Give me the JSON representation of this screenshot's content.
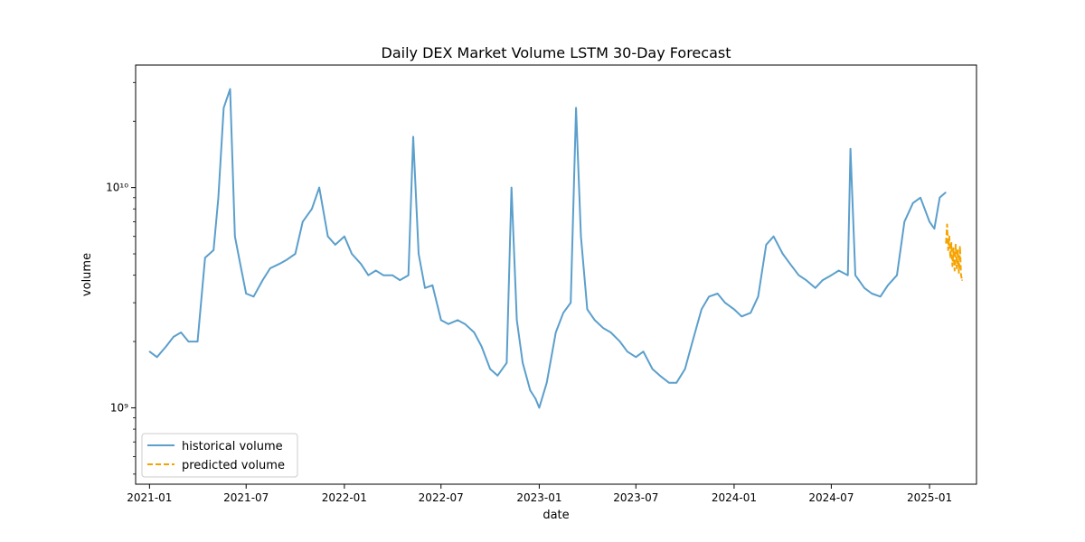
{
  "chart_data": {
    "type": "line",
    "title": "Daily DEX Market Volume LSTM 30-Day Forecast",
    "xlabel": "date",
    "ylabel": "volume",
    "yscale": "log",
    "ylim": [
      450000000,
      36000000000
    ],
    "xlim": [
      "2020-12-06",
      "2025-03-30"
    ],
    "x_ticks": [
      "2021-01",
      "2021-07",
      "2022-01",
      "2022-07",
      "2023-01",
      "2023-07",
      "2024-01",
      "2024-07",
      "2025-01"
    ],
    "y_ticks": [
      {
        "value": 1000000000,
        "label": "10⁹"
      },
      {
        "value": 10000000000,
        "label": "10¹⁰"
      }
    ],
    "legend": {
      "position": "lower-left"
    },
    "grid": false,
    "series": [
      {
        "name": "historical volume",
        "color": "#5b9fcc",
        "style": "solid",
        "points": [
          [
            "2021-01-01",
            1800000000
          ],
          [
            "2021-01-15",
            1700000000
          ],
          [
            "2021-02-01",
            1900000000
          ],
          [
            "2021-02-15",
            2100000000
          ],
          [
            "2021-03-01",
            2200000000
          ],
          [
            "2021-03-15",
            2000000000
          ],
          [
            "2021-04-01",
            2000000000
          ],
          [
            "2021-04-15",
            4800000000
          ],
          [
            "2021-05-01",
            5200000000
          ],
          [
            "2021-05-10",
            9000000000
          ],
          [
            "2021-05-20",
            23000000000
          ],
          [
            "2021-06-01",
            28000000000
          ],
          [
            "2021-06-10",
            6000000000
          ],
          [
            "2021-06-20",
            4500000000
          ],
          [
            "2021-07-01",
            3300000000
          ],
          [
            "2021-07-15",
            3200000000
          ],
          [
            "2021-08-01",
            3800000000
          ],
          [
            "2021-08-15",
            4300000000
          ],
          [
            "2021-09-01",
            4500000000
          ],
          [
            "2021-09-15",
            4700000000
          ],
          [
            "2021-10-01",
            5000000000
          ],
          [
            "2021-10-15",
            7000000000
          ],
          [
            "2021-11-01",
            8000000000
          ],
          [
            "2021-11-15",
            10000000000
          ],
          [
            "2021-12-01",
            6000000000
          ],
          [
            "2021-12-15",
            5500000000
          ],
          [
            "2022-01-01",
            6000000000
          ],
          [
            "2022-01-15",
            5000000000
          ],
          [
            "2022-02-01",
            4500000000
          ],
          [
            "2022-02-15",
            4000000000
          ],
          [
            "2022-03-01",
            4200000000
          ],
          [
            "2022-03-15",
            4000000000
          ],
          [
            "2022-04-01",
            4000000000
          ],
          [
            "2022-04-15",
            3800000000
          ],
          [
            "2022-05-01",
            4000000000
          ],
          [
            "2022-05-10",
            17000000000
          ],
          [
            "2022-05-20",
            5000000000
          ],
          [
            "2022-06-01",
            3500000000
          ],
          [
            "2022-06-15",
            3600000000
          ],
          [
            "2022-07-01",
            2500000000
          ],
          [
            "2022-07-15",
            2400000000
          ],
          [
            "2022-08-01",
            2500000000
          ],
          [
            "2022-08-15",
            2400000000
          ],
          [
            "2022-09-01",
            2200000000
          ],
          [
            "2022-09-15",
            1900000000
          ],
          [
            "2022-10-01",
            1500000000
          ],
          [
            "2022-10-15",
            1400000000
          ],
          [
            "2022-11-01",
            1600000000
          ],
          [
            "2022-11-10",
            10000000000
          ],
          [
            "2022-11-20",
            2500000000
          ],
          [
            "2022-12-01",
            1600000000
          ],
          [
            "2022-12-15",
            1200000000
          ],
          [
            "2022-12-25",
            1100000000
          ],
          [
            "2023-01-01",
            1000000000
          ],
          [
            "2023-01-15",
            1300000000
          ],
          [
            "2023-02-01",
            2200000000
          ],
          [
            "2023-02-15",
            2700000000
          ],
          [
            "2023-03-01",
            3000000000
          ],
          [
            "2023-03-11",
            23000000000
          ],
          [
            "2023-03-20",
            6000000000
          ],
          [
            "2023-04-01",
            2800000000
          ],
          [
            "2023-04-15",
            2500000000
          ],
          [
            "2023-05-01",
            2300000000
          ],
          [
            "2023-05-15",
            2200000000
          ],
          [
            "2023-06-01",
            2000000000
          ],
          [
            "2023-06-15",
            1800000000
          ],
          [
            "2023-07-01",
            1700000000
          ],
          [
            "2023-07-15",
            1800000000
          ],
          [
            "2023-08-01",
            1500000000
          ],
          [
            "2023-08-15",
            1400000000
          ],
          [
            "2023-09-01",
            1300000000
          ],
          [
            "2023-09-15",
            1300000000
          ],
          [
            "2023-10-01",
            1500000000
          ],
          [
            "2023-10-15",
            2000000000
          ],
          [
            "2023-11-01",
            2800000000
          ],
          [
            "2023-11-15",
            3200000000
          ],
          [
            "2023-12-01",
            3300000000
          ],
          [
            "2023-12-15",
            3000000000
          ],
          [
            "2024-01-01",
            2800000000
          ],
          [
            "2024-01-15",
            2600000000
          ],
          [
            "2024-02-01",
            2700000000
          ],
          [
            "2024-02-15",
            3200000000
          ],
          [
            "2024-03-01",
            5500000000
          ],
          [
            "2024-03-15",
            6000000000
          ],
          [
            "2024-04-01",
            5000000000
          ],
          [
            "2024-04-15",
            4500000000
          ],
          [
            "2024-05-01",
            4000000000
          ],
          [
            "2024-05-15",
            3800000000
          ],
          [
            "2024-06-01",
            3500000000
          ],
          [
            "2024-06-15",
            3800000000
          ],
          [
            "2024-07-01",
            4000000000
          ],
          [
            "2024-07-15",
            4200000000
          ],
          [
            "2024-08-01",
            4000000000
          ],
          [
            "2024-08-06",
            15000000000
          ],
          [
            "2024-08-15",
            4000000000
          ],
          [
            "2024-09-01",
            3500000000
          ],
          [
            "2024-09-15",
            3300000000
          ],
          [
            "2024-10-01",
            3200000000
          ],
          [
            "2024-10-15",
            3600000000
          ],
          [
            "2024-11-01",
            4000000000
          ],
          [
            "2024-11-15",
            7000000000
          ],
          [
            "2024-12-01",
            8500000000
          ],
          [
            "2024-12-15",
            9000000000
          ],
          [
            "2025-01-01",
            7000000000
          ],
          [
            "2025-01-10",
            6500000000
          ],
          [
            "2025-01-20",
            9000000000
          ],
          [
            "2025-01-31",
            9500000000
          ]
        ]
      },
      {
        "name": "predicted volume",
        "color": "#f5a300",
        "style": "dashed",
        "points": [
          [
            "2025-02-01",
            5600000000
          ],
          [
            "2025-02-03",
            6800000000
          ],
          [
            "2025-02-05",
            5200000000
          ],
          [
            "2025-02-07",
            6000000000
          ],
          [
            "2025-02-09",
            4800000000
          ],
          [
            "2025-02-11",
            5600000000
          ],
          [
            "2025-02-13",
            4400000000
          ],
          [
            "2025-02-15",
            5300000000
          ],
          [
            "2025-02-17",
            4200000000
          ],
          [
            "2025-02-19",
            5500000000
          ],
          [
            "2025-02-21",
            4300000000
          ],
          [
            "2025-02-23",
            5200000000
          ],
          [
            "2025-02-25",
            4100000000
          ],
          [
            "2025-02-27",
            5400000000
          ],
          [
            "2025-03-01",
            4000000000
          ],
          [
            "2025-03-03",
            3800000000
          ]
        ]
      }
    ]
  }
}
